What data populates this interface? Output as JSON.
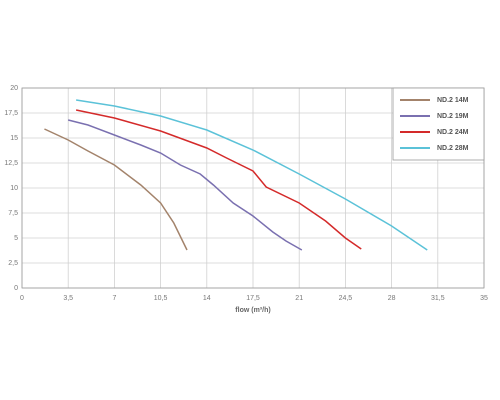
{
  "chart_data": {
    "type": "line",
    "x_label": "flow (m³/h)",
    "xlim": [
      0,
      35
    ],
    "ylim": [
      0,
      20
    ],
    "xticks": [
      0,
      {
        "value": 3.5,
        "label": "3,5"
      },
      7,
      {
        "value": 10.5,
        "label": "10,5"
      },
      14,
      {
        "value": 17.5,
        "label": "17,5"
      },
      21,
      {
        "value": 24.5,
        "label": "24,5"
      },
      28,
      {
        "value": 31.5,
        "label": "31,5"
      },
      35
    ],
    "yticks": [
      0,
      {
        "value": 2.5,
        "label": "2,5"
      },
      5,
      {
        "value": 7.5,
        "label": "7,5"
      },
      10,
      {
        "value": 12.5,
        "label": "12,5"
      },
      15,
      {
        "value": 17.5,
        "label": "17,5"
      },
      20
    ],
    "grid": true,
    "legend": "top-right",
    "series": [
      {
        "name": "ND.2 14M",
        "color": "#a3836b",
        "x": [
          1.7,
          3.5,
          5,
          7,
          9,
          10.5,
          11.5,
          12.5
        ],
        "values": [
          15.9,
          14.8,
          13.7,
          12.3,
          10.3,
          8.5,
          6.5,
          3.8
        ]
      },
      {
        "name": "ND.2 19M",
        "color": "#7a70b0",
        "x": [
          3.5,
          5,
          7,
          9,
          10.5,
          12,
          13.5,
          14.5,
          16,
          17.5,
          19,
          20,
          21.2
        ],
        "values": [
          16.8,
          16.3,
          15.3,
          14.3,
          13.5,
          12.3,
          11.4,
          10.3,
          8.5,
          7.2,
          5.6,
          4.7,
          3.8
        ]
      },
      {
        "name": "ND.2 24M",
        "color": "#d42a2a",
        "x": [
          4.1,
          7,
          10.5,
          14,
          15.5,
          17.5,
          18.5,
          21,
          23,
          24.5,
          25.7
        ],
        "values": [
          17.8,
          17,
          15.7,
          14,
          13,
          11.7,
          10.1,
          8.5,
          6.7,
          5,
          3.9
        ]
      },
      {
        "name": "ND.2 28M",
        "color": "#5bc2d8",
        "x": [
          4.1,
          7,
          10.5,
          14,
          17.5,
          21,
          24.5,
          28,
          30.7
        ],
        "values": [
          18.8,
          18.2,
          17.2,
          15.8,
          13.8,
          11.4,
          8.9,
          6.2,
          3.8
        ]
      }
    ]
  }
}
